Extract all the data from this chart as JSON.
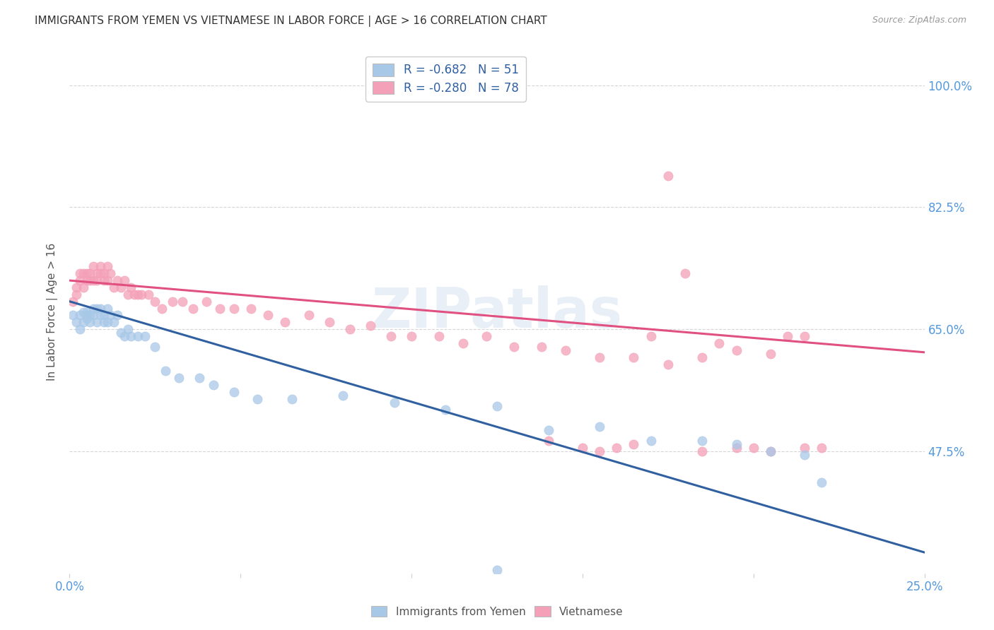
{
  "title": "IMMIGRANTS FROM YEMEN VS VIETNAMESE IN LABOR FORCE | AGE > 16 CORRELATION CHART",
  "source": "Source: ZipAtlas.com",
  "ylabel": "In Labor Force | Age > 16",
  "x_min": 0.0,
  "x_max": 0.25,
  "y_min": 0.3,
  "y_max": 1.05,
  "x_ticks": [
    0.0,
    0.05,
    0.1,
    0.15,
    0.2,
    0.25
  ],
  "x_tick_labels": [
    "0.0%",
    "",
    "",
    "",
    "",
    "25.0%"
  ],
  "y_ticks": [
    0.475,
    0.65,
    0.825,
    1.0
  ],
  "y_tick_labels": [
    "47.5%",
    "65.0%",
    "82.5%",
    "100.0%"
  ],
  "legend_blue_label": "R = -0.682   N = 51",
  "legend_pink_label": "R = -0.280   N = 78",
  "blue_color": "#a8c8e8",
  "pink_color": "#f4a0b8",
  "blue_line_color": "#3060a0",
  "pink_line_color": "#e05080",
  "watermark": "ZIPatlas",
  "blue_scatter_x": [
    0.001,
    0.002,
    0.003,
    0.003,
    0.004,
    0.004,
    0.005,
    0.005,
    0.005,
    0.006,
    0.006,
    0.007,
    0.007,
    0.008,
    0.008,
    0.009,
    0.009,
    0.01,
    0.01,
    0.011,
    0.011,
    0.012,
    0.013,
    0.014,
    0.015,
    0.016,
    0.017,
    0.018,
    0.02,
    0.022,
    0.025,
    0.028,
    0.032,
    0.038,
    0.042,
    0.048,
    0.055,
    0.065,
    0.08,
    0.095,
    0.11,
    0.125,
    0.14,
    0.155,
    0.17,
    0.185,
    0.195,
    0.205,
    0.215,
    0.22,
    0.125
  ],
  "blue_scatter_y": [
    0.67,
    0.66,
    0.67,
    0.65,
    0.66,
    0.675,
    0.67,
    0.665,
    0.675,
    0.67,
    0.66,
    0.68,
    0.67,
    0.68,
    0.66,
    0.68,
    0.67,
    0.67,
    0.66,
    0.66,
    0.68,
    0.67,
    0.66,
    0.67,
    0.645,
    0.64,
    0.65,
    0.64,
    0.64,
    0.64,
    0.625,
    0.59,
    0.58,
    0.58,
    0.57,
    0.56,
    0.55,
    0.55,
    0.555,
    0.545,
    0.535,
    0.54,
    0.505,
    0.51,
    0.49,
    0.49,
    0.485,
    0.475,
    0.47,
    0.43,
    0.305
  ],
  "pink_scatter_x": [
    0.001,
    0.002,
    0.002,
    0.003,
    0.003,
    0.004,
    0.004,
    0.005,
    0.005,
    0.006,
    0.006,
    0.007,
    0.007,
    0.008,
    0.008,
    0.009,
    0.009,
    0.01,
    0.01,
    0.011,
    0.011,
    0.012,
    0.013,
    0.014,
    0.015,
    0.016,
    0.017,
    0.018,
    0.019,
    0.02,
    0.021,
    0.023,
    0.025,
    0.027,
    0.03,
    0.033,
    0.036,
    0.04,
    0.044,
    0.048,
    0.053,
    0.058,
    0.063,
    0.07,
    0.076,
    0.082,
    0.088,
    0.094,
    0.1,
    0.108,
    0.115,
    0.122,
    0.13,
    0.138,
    0.145,
    0.155,
    0.165,
    0.175,
    0.185,
    0.195,
    0.205,
    0.215,
    0.185,
    0.195,
    0.205,
    0.215,
    0.14,
    0.15,
    0.155,
    0.16,
    0.165,
    0.17,
    0.175,
    0.18,
    0.19,
    0.2,
    0.21,
    0.22
  ],
  "pink_scatter_y": [
    0.69,
    0.71,
    0.7,
    0.72,
    0.73,
    0.71,
    0.73,
    0.72,
    0.73,
    0.73,
    0.72,
    0.74,
    0.72,
    0.73,
    0.72,
    0.74,
    0.73,
    0.72,
    0.73,
    0.72,
    0.74,
    0.73,
    0.71,
    0.72,
    0.71,
    0.72,
    0.7,
    0.71,
    0.7,
    0.7,
    0.7,
    0.7,
    0.69,
    0.68,
    0.69,
    0.69,
    0.68,
    0.69,
    0.68,
    0.68,
    0.68,
    0.67,
    0.66,
    0.67,
    0.66,
    0.65,
    0.655,
    0.64,
    0.64,
    0.64,
    0.63,
    0.64,
    0.625,
    0.625,
    0.62,
    0.61,
    0.61,
    0.6,
    0.61,
    0.62,
    0.615,
    0.64,
    0.475,
    0.48,
    0.475,
    0.48,
    0.49,
    0.48,
    0.475,
    0.48,
    0.485,
    0.64,
    0.87,
    0.73,
    0.63,
    0.48,
    0.64,
    0.48
  ],
  "blue_trend_x": [
    0.0,
    0.25
  ],
  "blue_trend_y": [
    0.69,
    0.33
  ],
  "pink_trend_x": [
    0.0,
    0.25
  ],
  "pink_trend_y": [
    0.72,
    0.617
  ],
  "background_color": "#ffffff",
  "grid_color": "#cccccc",
  "tick_color": "#5599dd",
  "title_color": "#333333",
  "figsize": [
    14.06,
    8.92
  ]
}
